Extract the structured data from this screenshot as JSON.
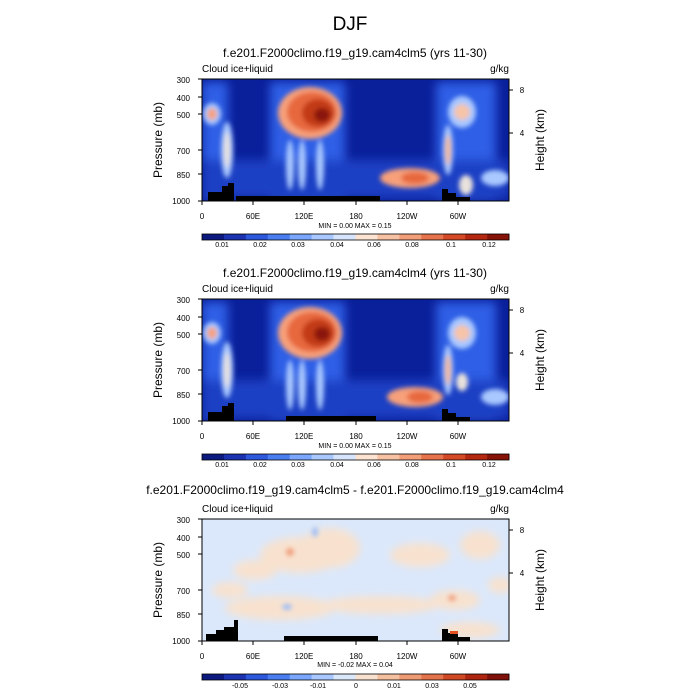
{
  "figure": {
    "title": "DJF"
  },
  "chart_data": [
    {
      "type": "heatmap",
      "title": "f.e201.F2000climo.f19_g19.cam4clm5 (yrs 11-30)",
      "subtitle_left": "Cloud ice+liquid",
      "subtitle_right": "g/kg",
      "ylabel": "Pressure (mb)",
      "ylabel_right": "Height (km)",
      "x_ticks": [
        "0",
        "60E",
        "120E",
        "180",
        "120W",
        "60W"
      ],
      "y_ticks": [
        "300",
        "400",
        "500",
        "700",
        "850",
        "1000"
      ],
      "y_ticks_right": [
        "8",
        "4"
      ],
      "stats": "MIN =   0.00  MAX =   0.15",
      "colorbar_labels": [
        "0.01",
        "0.02",
        "0.03",
        "0.04",
        "0.06",
        "0.08",
        "0.1",
        "0.12"
      ],
      "range": [
        0,
        0.15
      ],
      "features": [
        {
          "lon": 12,
          "p": 500,
          "value": 0.08
        },
        {
          "lon": 28,
          "p": 650,
          "value": 0.04
        },
        {
          "lon": 120,
          "p": 500,
          "value": 0.12
        },
        {
          "lon": 100,
          "p": 450,
          "value": 0.08
        },
        {
          "lon": 225,
          "p": 850,
          "value": 0.1
        },
        {
          "lon": 290,
          "p": 500,
          "value": 0.06
        },
        {
          "lon": 305,
          "p": 750,
          "value": 0.05
        },
        {
          "lon": 330,
          "p": 850,
          "value": 0.04
        }
      ]
    },
    {
      "type": "heatmap",
      "title": "f.e201.F2000climo.f19_g19.cam4clm4 (yrs 11-30)",
      "subtitle_left": "Cloud ice+liquid",
      "subtitle_right": "g/kg",
      "ylabel": "Pressure (mb)",
      "ylabel_right": "Height (km)",
      "x_ticks": [
        "0",
        "60E",
        "120E",
        "180",
        "120W",
        "60W"
      ],
      "y_ticks": [
        "300",
        "400",
        "500",
        "700",
        "850",
        "1000"
      ],
      "y_ticks_right": [
        "8",
        "4"
      ],
      "stats": "MIN =   0.00  MAX =   0.15",
      "colorbar_labels": [
        "0.01",
        "0.02",
        "0.03",
        "0.04",
        "0.06",
        "0.08",
        "0.1",
        "0.12"
      ],
      "range": [
        0,
        0.15
      ],
      "features": [
        {
          "lon": 12,
          "p": 500,
          "value": 0.08
        },
        {
          "lon": 28,
          "p": 650,
          "value": 0.04
        },
        {
          "lon": 120,
          "p": 500,
          "value": 0.12
        },
        {
          "lon": 100,
          "p": 450,
          "value": 0.08
        },
        {
          "lon": 225,
          "p": 850,
          "value": 0.1
        },
        {
          "lon": 290,
          "p": 500,
          "value": 0.06
        },
        {
          "lon": 305,
          "p": 750,
          "value": 0.05
        },
        {
          "lon": 330,
          "p": 850,
          "value": 0.04
        }
      ]
    },
    {
      "type": "heatmap",
      "title": "f.e201.F2000climo.f19_g19.cam4clm5 - f.e201.F2000climo.f19_g19.cam4clm4",
      "subtitle_left": "Cloud ice+liquid",
      "subtitle_right": "g/kg",
      "ylabel": "Pressure (mb)",
      "ylabel_right": "Height (km)",
      "x_ticks": [
        "0",
        "60E",
        "120E",
        "180",
        "120W",
        "60W"
      ],
      "y_ticks": [
        "300",
        "400",
        "500",
        "700",
        "850",
        "1000"
      ],
      "y_ticks_right": [
        "8",
        "4"
      ],
      "stats": "MIN =  -0.02  MAX =   0.04",
      "colorbar_labels": [
        "-0.05",
        "-0.03",
        "-0.01",
        "0",
        "0.01",
        "0.03",
        "0.05"
      ],
      "range": [
        -0.02,
        0.04
      ]
    }
  ]
}
